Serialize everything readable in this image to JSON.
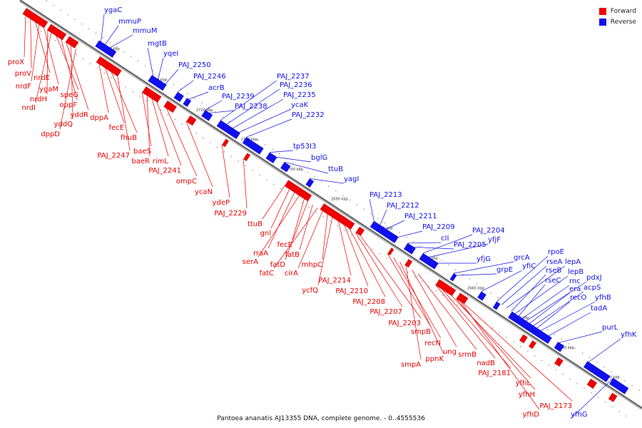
{
  "legend": {
    "forward_label": "Forward",
    "reverse_label": "Reverse",
    "forward_color": "#ee0000",
    "reverse_color": "#1010ee"
  },
  "caption": "Pantoea ananatis AJ13355 DNA, complete genome. - 0..4555536",
  "ticks": [
    "2740 kbp",
    "2730 kbp",
    "2720 kbp",
    "2710 kbp",
    "2700 kbp",
    "2690 kbp",
    "2680 kbp",
    "2670 kbp",
    "2660 kbp",
    "2650 kbp",
    "2640 kbp",
    "2630 kbp"
  ],
  "forward_genes": [
    "proX",
    "proV",
    "nrdE",
    "nrdF",
    "ygaM",
    "nrdH",
    "nrdI",
    "speG",
    "oppF",
    "yddR",
    "yddQ",
    "dppD",
    "dppA",
    "fecE",
    "fhuB",
    "PAJ_2247",
    "baeS",
    "baeR",
    "rimL",
    "PAJ_2241",
    "ompC",
    "ycaN",
    "ydeP",
    "PAJ_2229",
    "ttuB",
    "gnl",
    "rraA",
    "serA",
    "fecE",
    "fatD",
    "fatB",
    "fatC",
    "cirA",
    "mhpC",
    "ycfQ",
    "PAJ_2214",
    "PAJ_2210",
    "PAJ_2208",
    "PAJ_2207",
    "PAJ_2203",
    "smpB",
    "recN",
    "ppnK",
    "smpA",
    "ung",
    "srmB",
    "nadB",
    "PAJ_2181",
    "yfhL",
    "yfhH",
    "yfhD",
    "PAJ_2173"
  ],
  "reverse_genes": [
    "ygaC",
    "mmuP",
    "mmuM",
    "mgtB",
    "yqeI",
    "PAJ_2250",
    "PAJ_2246",
    "acrB",
    "PAJ_2239",
    "PAJ_2238",
    "PAJ_2237",
    "PAJ_2236",
    "PAJ_2235",
    "ycaK",
    "PAJ_2232",
    "tp53I3",
    "bglG",
    "ttuB",
    "yagI",
    "PAJ_2213",
    "PAJ_2212",
    "PAJ_2211",
    "PAJ_2209",
    "cII",
    "PAJ_2205",
    "PAJ_2204",
    "yfjF",
    "yfjG",
    "grcA",
    "grpE",
    "yfiC",
    "rpoE",
    "rseA",
    "lepA",
    "rseB",
    "lepB",
    "rseC",
    "rnc",
    "pdxJ",
    "era",
    "acpS",
    "recO",
    "yfhB",
    "tadA",
    "purL",
    "yfhK",
    "yfhG"
  ]
}
